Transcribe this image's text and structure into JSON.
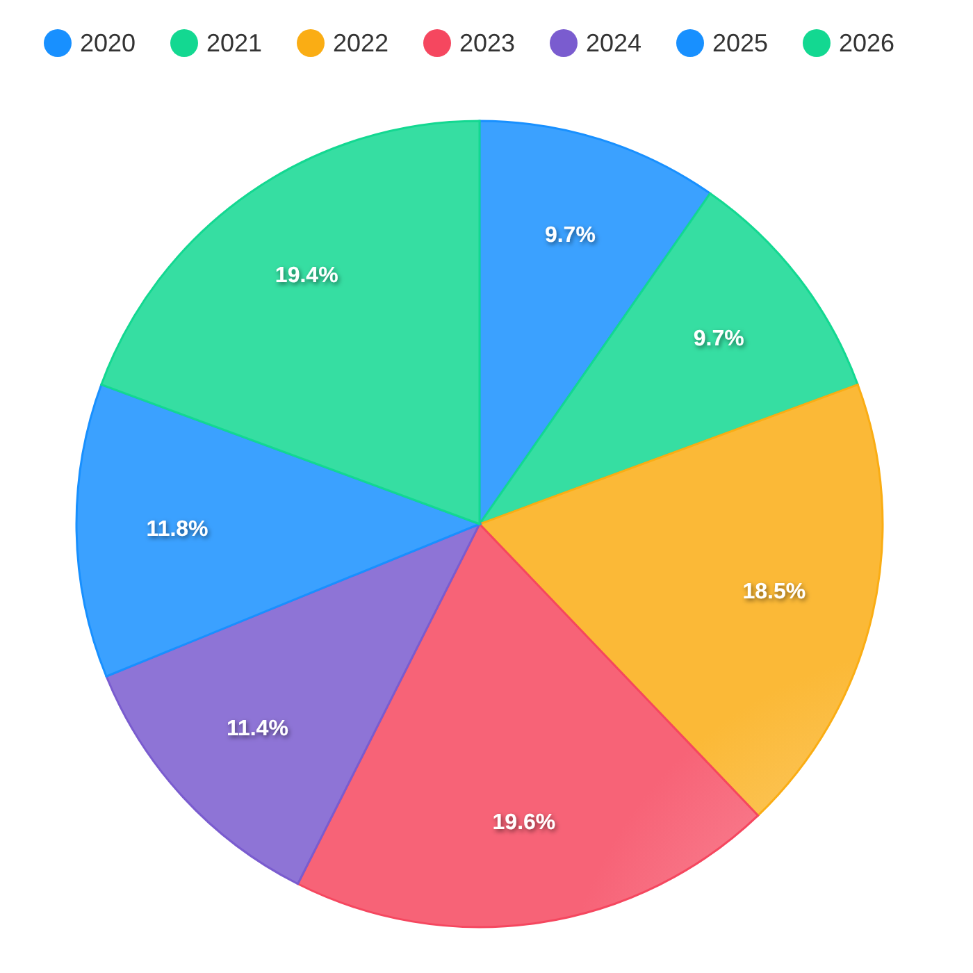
{
  "chart_data": {
    "type": "pie",
    "categories": [
      "2020",
      "2021",
      "2022",
      "2023",
      "2024",
      "2025",
      "2026"
    ],
    "values": [
      9.7,
      9.7,
      18.5,
      19.6,
      11.4,
      11.8,
      19.4
    ],
    "colors": [
      "#1890ff",
      "#13d891",
      "#faad14",
      "#f5475f",
      "#7a5ccf",
      "#1890ff",
      "#13d891"
    ],
    "value_labels": [
      "9.7%",
      "9.7%",
      "18.5%",
      "19.6%",
      "11.4%",
      "11.8%",
      "19.4%"
    ],
    "legend": "top"
  }
}
